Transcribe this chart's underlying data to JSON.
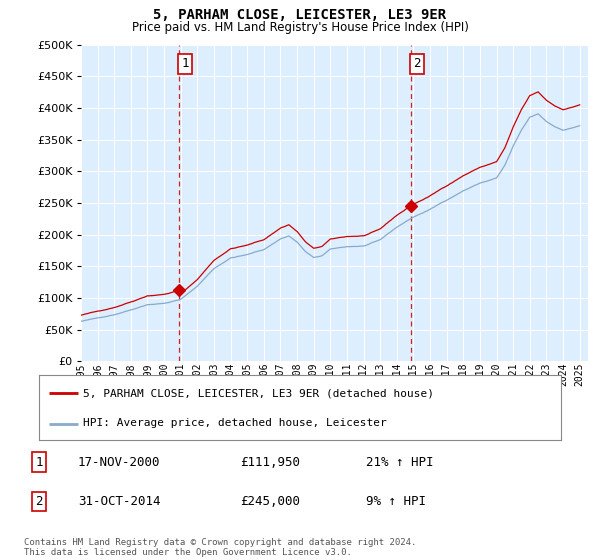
{
  "title": "5, PARHAM CLOSE, LEICESTER, LE3 9ER",
  "subtitle": "Price paid vs. HM Land Registry's House Price Index (HPI)",
  "property_label": "5, PARHAM CLOSE, LEICESTER, LE3 9ER (detached house)",
  "hpi_label": "HPI: Average price, detached house, Leicester",
  "transaction1": {
    "num": "1",
    "date": "17-NOV-2000",
    "price": "£111,950",
    "hpi": "21% ↑ HPI"
  },
  "transaction2": {
    "num": "2",
    "date": "31-OCT-2014",
    "price": "£245,000",
    "hpi": "9% ↑ HPI"
  },
  "footer": "Contains HM Land Registry data © Crown copyright and database right 2024.\nThis data is licensed under the Open Government Licence v3.0.",
  "ylim": [
    0,
    500000
  ],
  "yticks": [
    0,
    50000,
    100000,
    150000,
    200000,
    250000,
    300000,
    350000,
    400000,
    450000,
    500000
  ],
  "property_color": "#cc0000",
  "hpi_color": "#88aacc",
  "vline_color": "#cc0000",
  "bg_color": "#ddeeff",
  "grid_color": "#ffffff",
  "transaction1_x": 2000.875,
  "transaction2_x": 2014.833,
  "transaction1_y": 111950,
  "transaction2_y": 245000,
  "xmin": 1995.0,
  "xmax": 2025.5
}
